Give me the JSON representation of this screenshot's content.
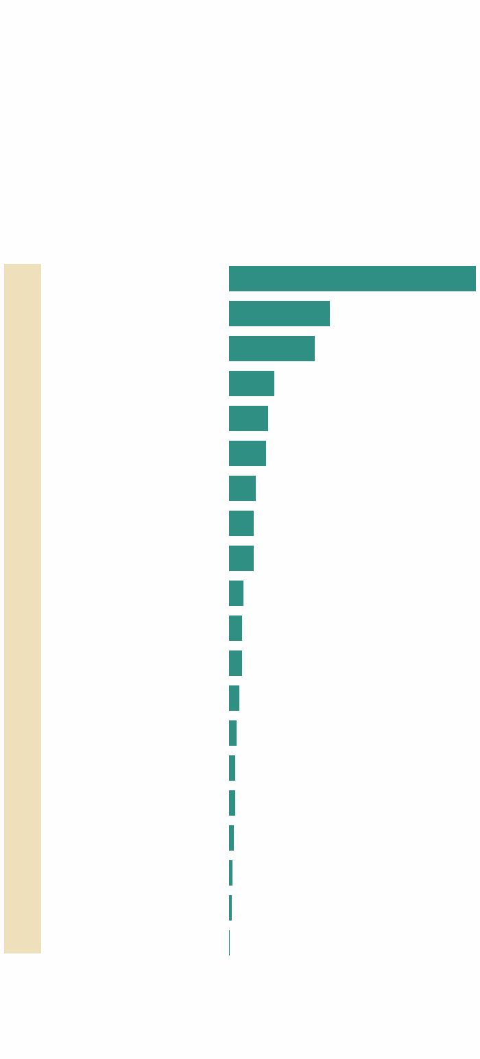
{
  "chart_data": {
    "type": "bar",
    "orientation": "horizontal",
    "values": [
      360,
      147,
      125,
      66,
      57,
      54,
      39,
      36,
      36,
      21,
      19,
      19,
      15,
      11,
      9,
      9,
      7,
      5,
      4,
      1
    ],
    "xlim": [
      0,
      360
    ],
    "color": "#2f8f83"
  }
}
